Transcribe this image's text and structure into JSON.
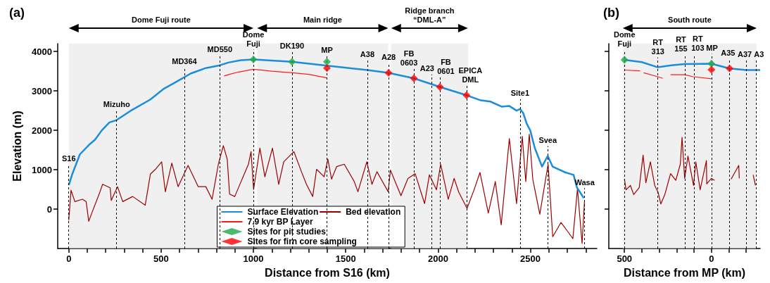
{
  "chart_data": [
    {
      "type": "line",
      "title": "(a)",
      "xlabel": "Distance from S16 (km)",
      "ylabel": "Elevation (m)",
      "xlim": [
        -60,
        2860
      ],
      "ylim": [
        -1000,
        4200
      ],
      "xticks": [
        0,
        {
          "value": 100,
          "label": null
        },
        {
          "value": 200,
          "label": null
        },
        {
          "value": 300,
          "label": null
        },
        {
          "value": 400,
          "label": null
        },
        500,
        {
          "value": 600,
          "label": null
        },
        {
          "value": 700,
          "label": null
        },
        {
          "value": 800,
          "label": null
        },
        {
          "value": 900,
          "label": null
        },
        1000,
        {
          "value": 1100,
          "label": null
        },
        {
          "value": 1200,
          "label": null
        },
        {
          "value": 1300,
          "label": null
        },
        {
          "value": 1400,
          "label": null
        },
        1500,
        {
          "value": 1600,
          "label": null
        },
        {
          "value": 1700,
          "label": null
        },
        {
          "value": 1800,
          "label": null
        },
        {
          "value": 1900,
          "label": null
        },
        2000,
        {
          "value": 2100,
          "label": null
        },
        {
          "value": 2200,
          "label": null
        },
        {
          "value": 2300,
          "label": null
        },
        {
          "value": 2400,
          "label": null
        },
        2500,
        {
          "value": 2600,
          "label": null
        },
        {
          "value": 2700,
          "label": null
        },
        {
          "value": 2800,
          "label": null
        }
      ],
      "yticks": [
        0,
        1000,
        2000,
        3000,
        4000
      ],
      "legend": "bottom",
      "series": [
        {
          "name": "Surface Elevation",
          "color": "#1b8ddb",
          "marker": "none",
          "x": [
            0,
            19,
            60,
            114,
            142,
            179,
            220,
            259,
            333,
            441,
            516,
            578,
            660,
            742,
            810,
            864,
            932,
            1003,
            1209,
            1398,
            1617,
            1732,
            1869,
            2010,
            2154,
            2232,
            2283,
            2346,
            2385,
            2425,
            2444,
            2461,
            2480,
            2499,
            2510,
            2524,
            2563,
            2594,
            2620,
            2690,
            2734,
            2752,
            2789
          ],
          "values": [
            610,
            890,
            1390,
            1650,
            1760,
            2000,
            2200,
            2260,
            2490,
            2780,
            3060,
            3220,
            3440,
            3580,
            3640,
            3720,
            3780,
            3800,
            3740,
            3640,
            3530,
            3460,
            3320,
            3100,
            2890,
            2760,
            2730,
            2600,
            2620,
            2500,
            2540,
            2440,
            2170,
            2000,
            1800,
            1550,
            1080,
            1350,
            1080,
            930,
            870,
            550,
            280
          ]
        },
        {
          "name": "Bed elevation",
          "color": "#9b0000",
          "marker": "none",
          "x": [
            0,
            12,
            33,
            74,
            94,
            108,
            128,
            169,
            183,
            224,
            230,
            264,
            292,
            346,
            414,
            442,
            469,
            503,
            523,
            558,
            592,
            646,
            701,
            742,
            776,
            810,
            837,
            858,
            871,
            899,
            933,
            973,
            987,
            1001,
            1035,
            1062,
            1103,
            1137,
            1164,
            1219,
            1260,
            1287,
            1321,
            1342,
            1383,
            1403,
            1423,
            1451,
            1492,
            1546,
            1566,
            1614,
            1642,
            1669,
            1730,
            1742,
            1799,
            1837,
            1876,
            1927,
            1953,
            1991,
            2014,
            2055,
            2087,
            2112,
            2157,
            2195,
            2227,
            2272,
            2310,
            2342,
            2386,
            2425,
            2456,
            2475,
            2494,
            2513,
            2551,
            2596,
            2621,
            2666,
            2704,
            2730,
            2755,
            2780,
            2793
          ],
          "values": [
            -280,
            480,
            190,
            250,
            190,
            -310,
            -60,
            440,
            630,
            540,
            220,
            570,
            190,
            320,
            100,
            890,
            1010,
            1200,
            440,
            1170,
            570,
            1110,
            570,
            570,
            250,
            1140,
            1610,
            1270,
            380,
            320,
            700,
            1140,
            1460,
            500,
            1550,
            820,
            1550,
            630,
            1200,
            1460,
            950,
            630,
            320,
            1010,
            820,
            1270,
            760,
            1080,
            1140,
            700,
            440,
            1200,
            630,
            950,
            440,
            990,
            340,
            780,
            900,
            140,
            870,
            490,
            1140,
            250,
            780,
            430,
            20,
            490,
            930,
            -100,
            700,
            -400,
            1790,
            140,
            1850,
            700,
            1900,
            760,
            -130,
            1140,
            -700,
            -340,
            -580,
            -750,
            520,
            -870,
            200
          ]
        },
        {
          "name": "7.9 kyr BP Layer",
          "color": "#ff1a1a",
          "marker": "none",
          "x": [
            841,
            870,
            920,
            1000,
            1100,
            1209,
            1300,
            1398
          ],
          "values": [
            3380,
            3420,
            3480,
            3550,
            3500,
            3460,
            3420,
            3330
          ]
        },
        {
          "name": "Sites for pit studies",
          "type": "scatter",
          "color": "#1aaa4a",
          "marker": "diamond",
          "x": [
            1000,
            1209,
            1398
          ],
          "values": [
            3800,
            3740,
            3740
          ]
        },
        {
          "name": "Sites for firn core sampling",
          "type": "scatter",
          "color": "#ff0000",
          "marker": "diamond",
          "x": [
            1398,
            1732,
            1869,
            2010,
            2154
          ],
          "values": [
            3580,
            3460,
            3320,
            3100,
            2890
          ]
        }
      ],
      "ref_lines": [
        {
          "axis": "x",
          "value": 0,
          "label": "S16"
        },
        {
          "axis": "x",
          "value": 259,
          "label": "Mizuho"
        },
        {
          "axis": "x",
          "value": 626,
          "label": "MD364"
        },
        {
          "axis": "x",
          "value": 818,
          "label": "MD550"
        },
        {
          "axis": "x",
          "value": 1000,
          "label": "Dome Fuji"
        },
        {
          "axis": "x",
          "value": 1209,
          "label": "DK190"
        },
        {
          "axis": "x",
          "value": 1398,
          "label": "MP"
        },
        {
          "axis": "x",
          "value": 1617,
          "label": "A38"
        },
        {
          "axis": "x",
          "value": 1732,
          "label": "A28"
        },
        {
          "axis": "x",
          "value": 1869,
          "label": "FB 0603"
        },
        {
          "axis": "x",
          "value": 1967,
          "label": "A23"
        },
        {
          "axis": "x",
          "value": 2010,
          "label": "FB 0601"
        },
        {
          "axis": "x",
          "value": 2154,
          "label": "EPICA DML"
        },
        {
          "axis": "x",
          "value": 2444,
          "label": "Site1"
        },
        {
          "axis": "x",
          "value": 2594,
          "label": "Svea"
        },
        {
          "axis": "x",
          "value": 2794,
          "label": "Wasa"
        }
      ],
      "bands": [
        {
          "axis": "x",
          "from": 0,
          "to": 1000,
          "label": "Dome Fuji route"
        },
        {
          "axis": "x",
          "from": 1020,
          "to": 1730,
          "label": "Main ridge"
        },
        {
          "axis": "x",
          "from": 1746,
          "to": 2162,
          "label": "Ridge branch “DML-A”"
        }
      ]
    },
    {
      "type": "line",
      "title": "(b)",
      "xlabel": "Distance from MP (km)",
      "xlim": [
        590,
        -280
      ],
      "ylim": [
        -1000,
        4200
      ],
      "tick_labels": "x",
      "xticks": [
        500,
        {
          "value": 400,
          "label": null
        },
        {
          "value": 300,
          "label": null
        },
        {
          "value": 200,
          "label": null
        },
        {
          "value": 100,
          "label": null
        },
        0,
        {
          "value": -100,
          "label": null
        },
        {
          "value": -200,
          "label": null
        }
      ],
      "yticks": [
        0,
        1000,
        2000,
        3000,
        4000
      ],
      "series": [
        {
          "color": "#1b8ddb",
          "marker": "none",
          "x": [
            500,
            400,
            308,
            230,
            155,
            0,
            -104,
            -200,
            -280
          ],
          "values": [
            3790,
            3730,
            3600,
            3650,
            3680,
            3690,
            3570,
            3530,
            3530
          ]
        },
        {
          "color": "#9b0000",
          "marker": "none",
          "x": [
            500,
            491,
            466,
            447,
            415,
            393,
            377,
            351,
            326,
            307,
            291,
            268,
            235,
            205,
            179,
            169,
            154,
            135,
            103,
            90,
            65,
            29,
            27,
            0,
            -18,
            -60,
            -113,
            -157,
            -160,
            -200,
            -240,
            -253
          ],
          "values": [
            760,
            490,
            600,
            370,
            550,
            1370,
            670,
            1200,
            600,
            430,
            130,
            370,
            900,
            730,
            1140,
            1820,
            780,
            1350,
            600,
            1200,
            490,
            1230,
            640,
            780,
            730,
            null,
            760,
            1110,
            780,
            null,
            870,
            600
          ]
        },
        {
          "color": "#ff1a1a",
          "marker": "none",
          "x": [
            500,
            410,
            400,
            390,
            308,
            280,
            260,
            235,
            155,
            105,
            0
          ],
          "values": [
            3530,
            3510,
            null,
            3460,
            3360,
            3320,
            null,
            3410,
            3410,
            3360,
            3310
          ]
        },
        {
          "type": "scatter",
          "color": "#1aaa4a",
          "marker": "diamond",
          "x": [
            500,
            0
          ],
          "values": [
            3790,
            3690
          ]
        },
        {
          "type": "scatter",
          "color": "#ff0000",
          "marker": "diamond",
          "x": [
            0,
            -104
          ],
          "values": [
            3540,
            3570
          ]
        }
      ],
      "ref_lines": [
        {
          "axis": "x",
          "value": 500,
          "label": "Dome Fuji"
        },
        {
          "axis": "x",
          "value": 308,
          "label": "RT 313"
        },
        {
          "axis": "x",
          "value": 152,
          "label": "RT 155"
        },
        {
          "axis": "x",
          "value": 99,
          "label": "RT 103"
        },
        {
          "axis": "x",
          "value": 0,
          "label": "MP"
        },
        {
          "axis": "x",
          "value": -104,
          "label": "A35"
        },
        {
          "axis": "x",
          "value": -200,
          "label": "A37"
        },
        {
          "axis": "x",
          "value": -256,
          "label": "A3"
        }
      ],
      "bands": [
        {
          "axis": "x",
          "from": 510,
          "to": -260,
          "label": "South route"
        }
      ]
    }
  ]
}
